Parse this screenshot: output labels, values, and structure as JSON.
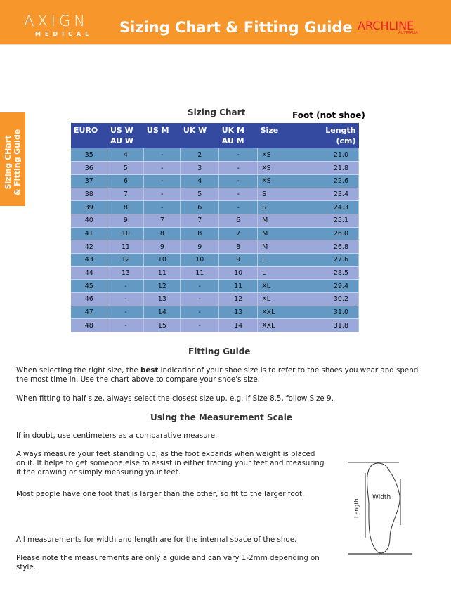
{
  "header": {
    "brand": "AXIGN",
    "brand_sub": "MEDICAL",
    "title": "Sizing Chart & Fitting Guide",
    "partner": "ARCHLINE",
    "partner_sub": "AUSTRALIA",
    "color": "#f7962b"
  },
  "side_tab": {
    "line1": "Sizing CHart",
    "line2": "& Fitting Guide"
  },
  "chart": {
    "title": "Sizing Chart",
    "note": "Foot (not shoe)",
    "columns": [
      "EURO",
      "US W\nAU W",
      "US M",
      "UK W",
      "UK M\nAU M",
      "Size",
      "Length\n(cm)"
    ],
    "rows": [
      [
        "35",
        "4",
        "-",
        "2",
        "-",
        "XS",
        "21.0"
      ],
      [
        "36",
        "5",
        "-",
        "3",
        "-",
        "XS",
        "21.8"
      ],
      [
        "37",
        "6",
        "-",
        "4",
        "-",
        "XS",
        "22.6"
      ],
      [
        "38",
        "7",
        "-",
        "5",
        "-",
        "S",
        "23.4"
      ],
      [
        "39",
        "8",
        "-",
        "6",
        "-",
        "S",
        "24.3"
      ],
      [
        "40",
        "9",
        "7",
        "7",
        "6",
        "M",
        "25.1"
      ],
      [
        "41",
        "10",
        "8",
        "8",
        "7",
        "M",
        "26.0"
      ],
      [
        "42",
        "11",
        "9",
        "9",
        "8",
        "M",
        "26.8"
      ],
      [
        "43",
        "12",
        "10",
        "10",
        "9",
        "L",
        "27.6"
      ],
      [
        "44",
        "13",
        "11",
        "11",
        "10",
        "L",
        "28.5"
      ],
      [
        "45",
        "-",
        "12",
        "-",
        "11",
        "XL",
        "29.4"
      ],
      [
        "46",
        "-",
        "13",
        "-",
        "12",
        "XL",
        "30.2"
      ],
      [
        "47",
        "-",
        "14",
        "-",
        "13",
        "XXL",
        "31.0"
      ],
      [
        "48",
        "-",
        "15",
        "-",
        "14",
        "XXL",
        "31.8"
      ]
    ],
    "colors": {
      "header": "#3449a0",
      "row_odd": "#6399c3",
      "row_even": "#9aa9da"
    }
  },
  "fitting": {
    "title": "Fitting Guide",
    "p1_a": "When selecting the right size, the ",
    "p1_bold": "best",
    "p1_b": " indicatior of your shoe size is to refer to the shoes you wear and spend the most time in. Use the chart above to compare your shoe's size.",
    "p2": "When fitting to half size, always select the closest size up. e.g. If Size 8.5, follow Size 9."
  },
  "measure": {
    "title": "Using the Measurement Scale",
    "p1": "If in doubt, use centimeters as a comparative measure.",
    "p2": "Always measure your feet standing up, as the foot expands when weight is placed on it. It helps to get someone else to assist in either tracing your feet and measuring it the drawing or simply measuring your feet.",
    "p3": "Most people have one foot that is larger than the other, so fit to the larger foot.",
    "p4": "All measurements for width and length are for the internal space of the shoe.",
    "p5": "Please note the measurements are only a guide and can vary 1-2mm depending on style."
  },
  "diagram": {
    "width_label": "Width",
    "length_label": "Length"
  }
}
